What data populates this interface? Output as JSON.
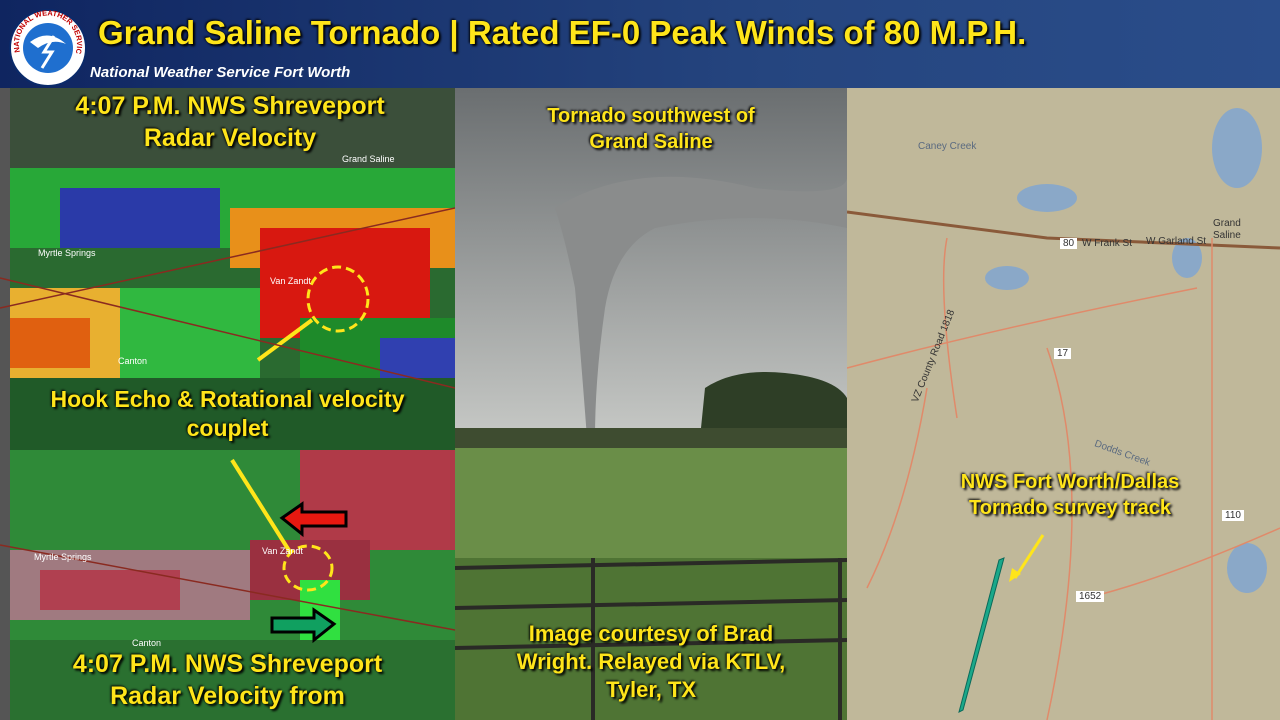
{
  "header": {
    "title": "Grand Saline Tornado | Rated EF-0 Peak Winds of 80 M.P.H.",
    "subtitle": "National Weather Service Fort Worth",
    "logo_text": "NATIONAL WEATHER SERVICE"
  },
  "radar_top": {
    "title_lines": [
      "4:07 P.M. NWS Shreveport",
      "Radar Velocity"
    ],
    "annotation_lines": [
      "Hook Echo & Rotational velocity",
      "couplet"
    ],
    "places": [
      "Grand Saline",
      "Myrtle Springs",
      "Van Zandt",
      "Canton"
    ]
  },
  "radar_bottom": {
    "title_lines": [
      "4:07 P.M. NWS Shreveport",
      "Radar Velocity from"
    ],
    "places": [
      "Myrtle Springs",
      "Van Zandt",
      "Canton"
    ]
  },
  "photo": {
    "caption_lines": [
      "Tornado southwest of",
      "Grand Saline"
    ],
    "credit_lines": [
      "Image courtesy of Brad",
      "Wright. Relayed via KTLV,",
      "Tyler, TX"
    ]
  },
  "map": {
    "label_lines": [
      "NWS Fort Worth/Dallas",
      "Tornado survey track"
    ],
    "places": [
      "Caney Creek",
      "Grand",
      "Saline",
      "80",
      "W Frank St",
      "W Garland St",
      "17",
      "VZ County Road 1818",
      "Dodds Creek",
      "110",
      "1652"
    ]
  }
}
